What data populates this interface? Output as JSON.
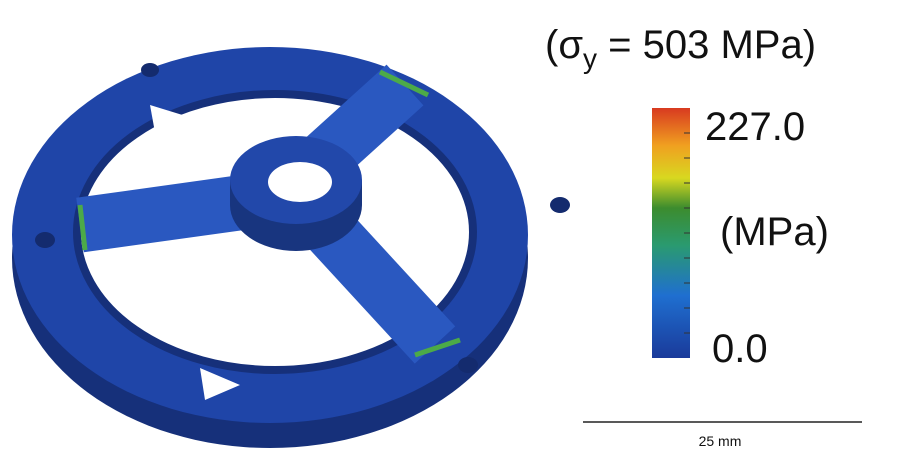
{
  "yield_label": {
    "prefix": "(σ",
    "subscript": "y",
    "suffix": " = 503 MPa)"
  },
  "colorbar": {
    "max_label": "227.0",
    "unit_label": "(MPa)",
    "min_label": "0.0"
  },
  "scale_bar": {
    "label": "25 mm"
  }
}
